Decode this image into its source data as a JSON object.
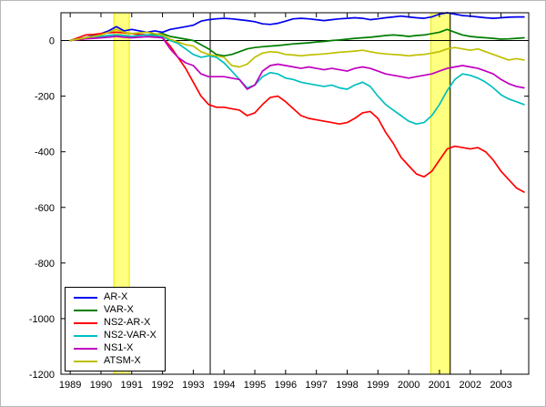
{
  "chart_data": {
    "type": "line",
    "title": "",
    "xlabel": "",
    "ylabel": "",
    "grid": false,
    "legend_position": "bottom-left",
    "xlim": [
      1988.7,
      2003.9
    ],
    "ylim": [
      -1200,
      100
    ],
    "x_ticks": [
      1989,
      1990,
      1991,
      1992,
      1993,
      1994,
      1995,
      1996,
      1997,
      1998,
      1999,
      2000,
      2001,
      2002,
      2003
    ],
    "y_ticks": [
      0,
      -200,
      -400,
      -600,
      -800,
      -1000,
      -1200
    ],
    "x_start": 1989,
    "x_step": 0.25,
    "hlines": [
      {
        "y": 0,
        "color": "#000000"
      }
    ],
    "vlines": [
      {
        "x": 1993.55,
        "color": "#000000"
      },
      {
        "x": 2001.35,
        "color": "#000000"
      }
    ],
    "shaded_bands": [
      {
        "x0": 1990.42,
        "x1": 1990.92,
        "fill": "#ffff80",
        "edge": "#e8e800"
      },
      {
        "x0": 2000.72,
        "x1": 2001.33,
        "fill": "#ffff80",
        "edge": "#e8e800"
      }
    ],
    "series": [
      {
        "name": "AR-X",
        "color": "#0000ee",
        "values": [
          0,
          5,
          10,
          18,
          25,
          35,
          50,
          35,
          40,
          35,
          30,
          35,
          30,
          40,
          45,
          50,
          55,
          70,
          75,
          78,
          80,
          78,
          75,
          72,
          68,
          60,
          58,
          62,
          70,
          78,
          80,
          78,
          75,
          72,
          75,
          78,
          80,
          82,
          80,
          75,
          78,
          82,
          85,
          88,
          85,
          82,
          80,
          85,
          95,
          100,
          95,
          90,
          88,
          85,
          82,
          80,
          82,
          84,
          85,
          85
        ]
      },
      {
        "name": "VAR-X",
        "color": "#007d00",
        "values": [
          0,
          5,
          10,
          12,
          15,
          18,
          20,
          18,
          15,
          18,
          20,
          22,
          25,
          15,
          10,
          5,
          0,
          -15,
          -30,
          -50,
          -55,
          -50,
          -40,
          -30,
          -25,
          -22,
          -20,
          -18,
          -15,
          -12,
          -10,
          -8,
          -5,
          -3,
          0,
          2,
          5,
          8,
          10,
          12,
          15,
          18,
          20,
          18,
          15,
          18,
          20,
          25,
          30,
          40,
          30,
          20,
          15,
          12,
          10,
          8,
          5,
          6,
          8,
          10
        ]
      },
      {
        "name": "NS2-AR-X",
        "color": "#ff0000",
        "values": [
          0,
          10,
          20,
          22,
          25,
          28,
          30,
          28,
          25,
          22,
          20,
          15,
          10,
          -20,
          -60,
          -100,
          -150,
          -200,
          -230,
          -240,
          -240,
          -245,
          -250,
          -270,
          -260,
          -230,
          -205,
          -200,
          -220,
          -245,
          -270,
          -280,
          -285,
          -290,
          -295,
          -300,
          -295,
          -280,
          -260,
          -255,
          -280,
          -330,
          -370,
          -420,
          -450,
          -480,
          -490,
          -470,
          -430,
          -390,
          -380,
          -385,
          -390,
          -385,
          -400,
          -430,
          -470,
          -500,
          -530,
          -545
        ]
      },
      {
        "name": "NS2-VAR-X",
        "color": "#00bfbf",
        "values": [
          0,
          5,
          10,
          12,
          15,
          18,
          20,
          18,
          15,
          18,
          20,
          18,
          15,
          0,
          -10,
          -30,
          -50,
          -60,
          -55,
          -60,
          -80,
          -110,
          -140,
          -170,
          -160,
          -130,
          -115,
          -120,
          -135,
          -140,
          -150,
          -155,
          -160,
          -165,
          -160,
          -170,
          -175,
          -160,
          -150,
          -165,
          -200,
          -230,
          -250,
          -270,
          -290,
          -300,
          -295,
          -270,
          -230,
          -180,
          -140,
          -120,
          -125,
          -135,
          -150,
          -170,
          -195,
          -210,
          -220,
          -230
        ]
      },
      {
        "name": "NS1-X",
        "color": "#bf00bf",
        "values": [
          0,
          3,
          6,
          8,
          10,
          12,
          15,
          12,
          10,
          12,
          14,
          12,
          10,
          -30,
          -60,
          -80,
          -90,
          -120,
          -130,
          -130,
          -130,
          -135,
          -140,
          -175,
          -160,
          -110,
          -90,
          -85,
          -90,
          -95,
          -100,
          -95,
          -100,
          -105,
          -100,
          -105,
          -110,
          -100,
          -95,
          -100,
          -110,
          -120,
          -125,
          -130,
          -135,
          -130,
          -125,
          -120,
          -110,
          -100,
          -95,
          -90,
          -95,
          -100,
          -110,
          -120,
          -140,
          -155,
          -165,
          -170
        ]
      },
      {
        "name": "ATSM-X",
        "color": "#bfbf00",
        "values": [
          0,
          5,
          10,
          15,
          20,
          30,
          40,
          30,
          25,
          28,
          30,
          25,
          20,
          5,
          -5,
          -15,
          -20,
          -40,
          -50,
          -55,
          -60,
          -90,
          -95,
          -85,
          -60,
          -45,
          -40,
          -42,
          -50,
          -52,
          -55,
          -52,
          -50,
          -48,
          -45,
          -42,
          -40,
          -38,
          -35,
          -40,
          -45,
          -48,
          -50,
          -52,
          -55,
          -52,
          -50,
          -45,
          -40,
          -30,
          -25,
          -30,
          -35,
          -30,
          -40,
          -50,
          -60,
          -70,
          -65,
          -70
        ]
      }
    ]
  },
  "axes": {
    "tick_color": "#000000",
    "label_color": "#000000",
    "box_color": "#000000"
  }
}
